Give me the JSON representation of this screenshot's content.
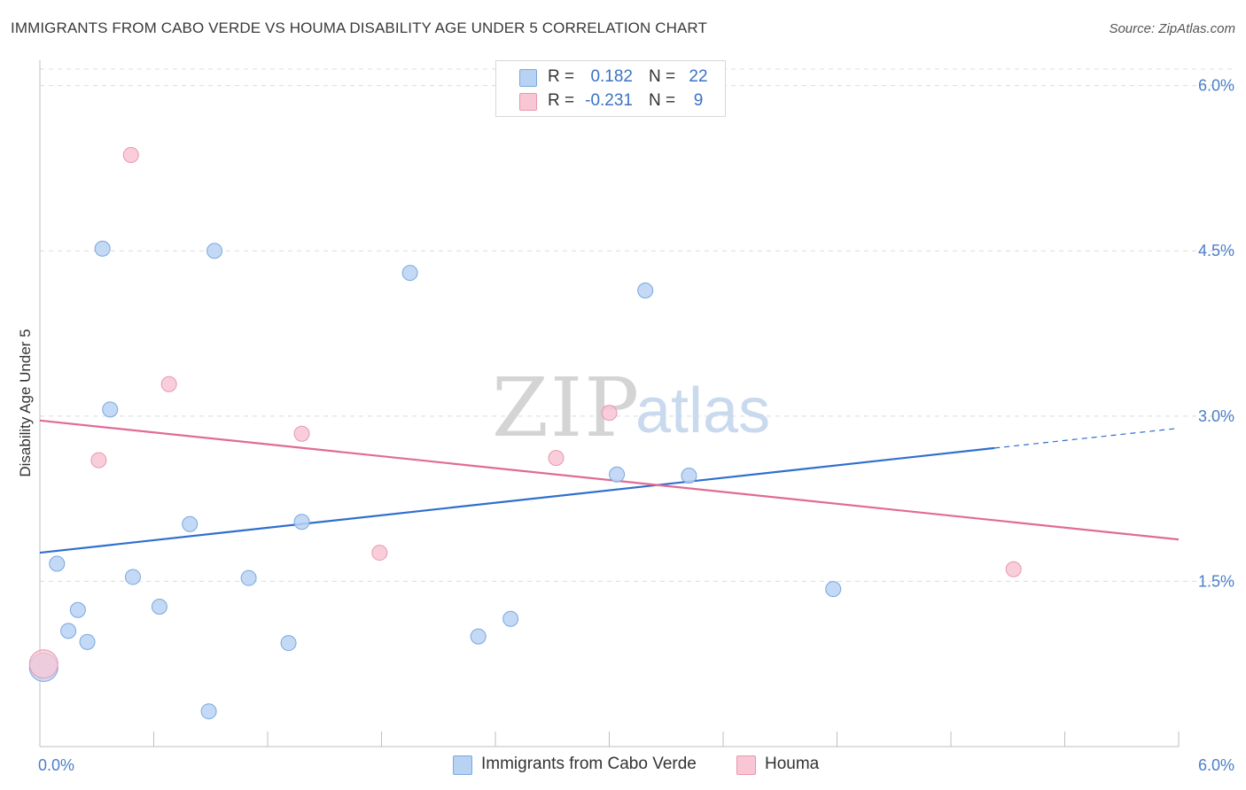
{
  "title": "IMMIGRANTS FROM CABO VERDE VS HOUMA DISABILITY AGE UNDER 5 CORRELATION CHART",
  "source": "Source: ZipAtlas.com",
  "watermark": {
    "zip": "ZIP",
    "atlas": "atlas"
  },
  "legend": {
    "series1": {
      "r_label": "R =",
      "r_value": "0.182",
      "n_label": "N =",
      "n_value": "22"
    },
    "series2": {
      "r_label": "R =",
      "r_value": "-0.231",
      "n_label": "N =",
      "n_value": "9"
    }
  },
  "bottom_legend": {
    "series1": "Immigrants from Cabo Verde",
    "series2": "Houma"
  },
  "colors": {
    "series1_fill": "#b8d2f3",
    "series1_stroke": "#7aa8df",
    "series1_line": "#2f6fce",
    "series2_fill": "#f8c6d4",
    "series2_stroke": "#e897b0",
    "series2_line": "#e06b95",
    "grid": "#dcdcdc",
    "tick_text": "#4a7fc9"
  },
  "chart_data": {
    "type": "scatter",
    "title": "IMMIGRANTS FROM CABO VERDE VS HOUMA DISABILITY AGE UNDER 5 CORRELATION CHART",
    "xlabel": "",
    "ylabel": "Disability Age Under 5",
    "xlim": [
      0,
      6
    ],
    "ylim": [
      0,
      6.15
    ],
    "x_tick_labels": [
      "0.0%",
      "6.0%"
    ],
    "y_ticks": [
      1.5,
      3.0,
      4.5,
      6.0
    ],
    "y_tick_labels": [
      "1.5%",
      "3.0%",
      "4.5%",
      "6.0%"
    ],
    "series": [
      {
        "name": "Immigrants from Cabo Verde",
        "r": 0.182,
        "n": 22,
        "points": [
          {
            "x": 0.02,
            "y": 0.72,
            "size": "large"
          },
          {
            "x": 0.09,
            "y": 1.66
          },
          {
            "x": 0.15,
            "y": 1.05
          },
          {
            "x": 0.2,
            "y": 1.24
          },
          {
            "x": 0.25,
            "y": 0.95
          },
          {
            "x": 0.33,
            "y": 4.52
          },
          {
            "x": 0.37,
            "y": 3.06
          },
          {
            "x": 0.49,
            "y": 1.54
          },
          {
            "x": 0.63,
            "y": 1.27
          },
          {
            "x": 0.79,
            "y": 2.02
          },
          {
            "x": 0.89,
            "y": 0.32
          },
          {
            "x": 0.92,
            "y": 4.5
          },
          {
            "x": 1.1,
            "y": 1.53
          },
          {
            "x": 1.31,
            "y": 0.94
          },
          {
            "x": 1.38,
            "y": 2.04
          },
          {
            "x": 1.95,
            "y": 4.3
          },
          {
            "x": 2.31,
            "y": 1.0
          },
          {
            "x": 2.48,
            "y": 1.16
          },
          {
            "x": 3.04,
            "y": 2.47
          },
          {
            "x": 3.19,
            "y": 4.14
          },
          {
            "x": 3.42,
            "y": 2.46
          },
          {
            "x": 4.18,
            "y": 1.43
          }
        ],
        "trend": {
          "x0": 0.0,
          "y0": 1.76,
          "x1": 5.03,
          "y1": 2.71,
          "dash_to_x": 6.0,
          "dash_to_y": 2.89
        }
      },
      {
        "name": "Houma",
        "r": -0.231,
        "n": 9,
        "points": [
          {
            "x": 0.02,
            "y": 0.75,
            "size": "large"
          },
          {
            "x": 0.31,
            "y": 2.6
          },
          {
            "x": 0.48,
            "y": 5.37
          },
          {
            "x": 0.68,
            "y": 3.29
          },
          {
            "x": 1.38,
            "y": 2.84
          },
          {
            "x": 1.79,
            "y": 1.76
          },
          {
            "x": 2.72,
            "y": 2.62
          },
          {
            "x": 3.0,
            "y": 3.03
          },
          {
            "x": 5.13,
            "y": 1.61
          }
        ],
        "trend": {
          "x0": 0.0,
          "y0": 2.96,
          "x1": 6.0,
          "y1": 1.88
        }
      }
    ]
  }
}
